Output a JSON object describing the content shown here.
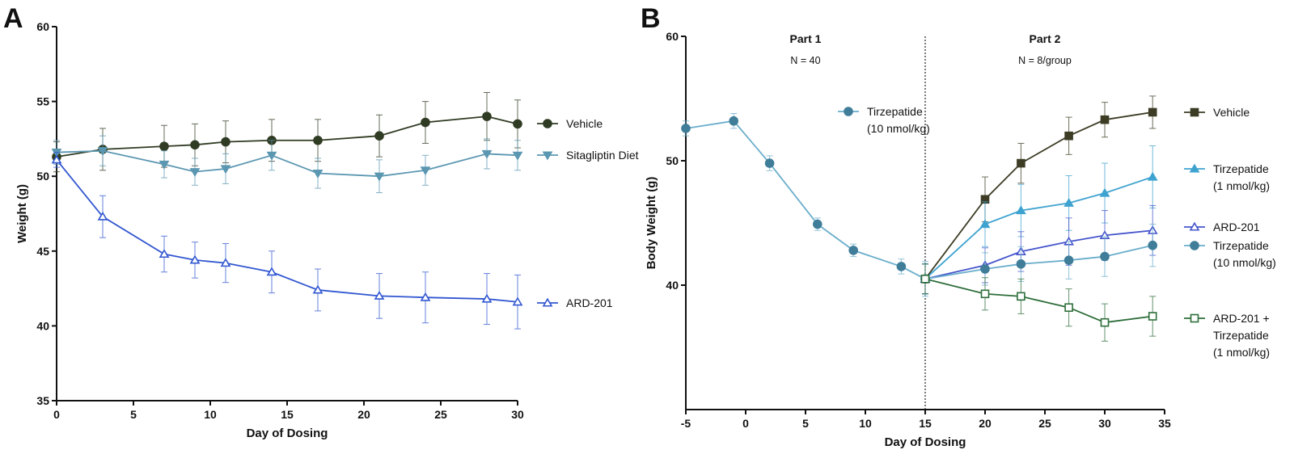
{
  "chart_data": [
    {
      "type": "line",
      "panel": "A",
      "xlabel": "Day of Dosing",
      "ylabel": "Weight (g)",
      "xlim": [
        0,
        30
      ],
      "ylim": [
        35,
        60
      ],
      "xticks": [
        0,
        5,
        10,
        15,
        20,
        25,
        30
      ],
      "yticks": [
        35,
        40,
        45,
        50,
        55,
        60
      ],
      "grid": false,
      "legend_placement": "right",
      "series": [
        {
          "name": "Vehicle",
          "color": "#2f3b22",
          "marker": "circle-filled",
          "x": [
            0,
            3,
            7,
            9,
            11,
            14,
            17,
            21,
            24,
            28,
            30
          ],
          "y": [
            51.3,
            51.8,
            52.0,
            52.1,
            52.3,
            52.4,
            52.4,
            52.7,
            53.6,
            54.0,
            53.5
          ],
          "err": [
            1.0,
            1.4,
            1.4,
            1.4,
            1.4,
            1.4,
            1.4,
            1.4,
            1.4,
            1.6,
            1.6
          ]
        },
        {
          "name": "Sitagliptin Diet",
          "color": "#5b97b1",
          "marker": "triangle-down-filled",
          "x": [
            0,
            3,
            7,
            9,
            11,
            14,
            17,
            21,
            24,
            28,
            30
          ],
          "y": [
            51.6,
            51.7,
            50.8,
            50.3,
            50.5,
            51.4,
            50.2,
            50.0,
            50.4,
            51.5,
            51.4
          ],
          "err": [
            0.8,
            1.0,
            0.9,
            0.9,
            1.0,
            1.0,
            1.0,
            1.1,
            1.0,
            1.0,
            1.0
          ]
        },
        {
          "name": "ARD-201",
          "color": "#3257d1",
          "marker": "triangle-up-open",
          "x": [
            0,
            3,
            7,
            9,
            11,
            14,
            17,
            21,
            24,
            28,
            30
          ],
          "y": [
            51.1,
            47.3,
            44.8,
            44.4,
            44.2,
            43.6,
            42.4,
            42.0,
            41.9,
            41.8,
            41.6
          ],
          "err": [
            0.5,
            1.4,
            1.2,
            1.2,
            1.3,
            1.4,
            1.4,
            1.5,
            1.7,
            1.7,
            1.8
          ]
        }
      ]
    },
    {
      "type": "line",
      "panel": "B",
      "xlabel": "Day of Dosing",
      "ylabel": "Body Weight (g)",
      "xlim": [
        -5,
        35
      ],
      "ylim": [
        30,
        60
      ],
      "xticks": [
        -5,
        0,
        5,
        10,
        15,
        20,
        25,
        30,
        35
      ],
      "yticks": [
        40,
        50,
        60
      ],
      "grid": false,
      "legend_placement": "right",
      "divider_x": 15,
      "annotations": [
        {
          "title": "Part 1",
          "subtitle": "N = 40",
          "x": 5
        },
        {
          "title": "Part 2",
          "subtitle": "N = 8/group",
          "x": 25
        }
      ],
      "series": [
        {
          "name": "Tirzepatide (10 nmol/kg)",
          "legend_lines": [
            "Tirzepatide",
            "(10 nmol/kg)"
          ],
          "phase": "part1",
          "color": "#3f7d99",
          "line_color": "#6aaecb",
          "marker": "circle-filled",
          "x": [
            -5,
            -1,
            2,
            6,
            9,
            13,
            15
          ],
          "y": [
            52.6,
            53.2,
            49.8,
            44.9,
            42.8,
            41.5,
            40.5
          ],
          "err": [
            0.6,
            0.6,
            0.6,
            0.5,
            0.5,
            0.6,
            1.4
          ]
        },
        {
          "name": "Vehicle",
          "legend_lines": [
            "Vehicle"
          ],
          "phase": "part2",
          "color": "#3d3d26",
          "marker": "square-filled",
          "x": [
            15,
            20,
            23,
            27,
            30,
            34
          ],
          "y": [
            40.5,
            46.9,
            49.8,
            52.0,
            53.3,
            53.9
          ],
          "err": [
            1.2,
            1.8,
            1.6,
            1.5,
            1.4,
            1.3
          ]
        },
        {
          "name": "Tirzepatide (1 nmol/kg)",
          "legend_lines": [
            "Tirzepatide",
            "(1 nmol/kg)"
          ],
          "phase": "part2",
          "color": "#3fa3d0",
          "marker": "triangle-up-filled",
          "x": [
            15,
            20,
            23,
            27,
            30,
            34
          ],
          "y": [
            40.5,
            44.9,
            46.0,
            46.6,
            47.4,
            48.7
          ],
          "err": [
            1.2,
            1.8,
            2.1,
            2.2,
            2.4,
            2.5
          ]
        },
        {
          "name": "ARD-201",
          "legend_lines": [
            "ARD-201"
          ],
          "phase": "part2",
          "color": "#4656cc",
          "marker": "triangle-up-open",
          "x": [
            15,
            20,
            23,
            27,
            30,
            34
          ],
          "y": [
            40.5,
            41.6,
            42.7,
            43.5,
            44.0,
            44.4
          ],
          "err": [
            1.2,
            1.4,
            1.6,
            1.9,
            2.0,
            2.0
          ]
        },
        {
          "name": "Tirzepatide (10 nmol/kg)",
          "legend_lines": [
            "Tirzepatide",
            "(10 nmol/kg)"
          ],
          "phase": "part2",
          "color": "#3f7d99",
          "line_color": "#6aaecb",
          "marker": "circle-filled",
          "x": [
            15,
            20,
            23,
            27,
            30,
            34
          ],
          "y": [
            40.5,
            41.3,
            41.7,
            42.0,
            42.3,
            43.2
          ],
          "err": [
            1.2,
            1.3,
            1.4,
            1.5,
            1.6,
            1.7
          ]
        },
        {
          "name": "ARD-201 + Tirzepatide (1 nmol/kg)",
          "legend_lines": [
            "ARD-201 +",
            "Tirzepatide",
            "(1 nmol/kg)"
          ],
          "phase": "part2",
          "color": "#2e6e3a",
          "marker": "square-open",
          "x": [
            15,
            20,
            23,
            27,
            30,
            34
          ],
          "y": [
            40.5,
            39.3,
            39.1,
            38.2,
            37.0,
            37.5
          ],
          "err": [
            1.2,
            1.3,
            1.4,
            1.5,
            1.5,
            1.6
          ]
        }
      ]
    }
  ]
}
